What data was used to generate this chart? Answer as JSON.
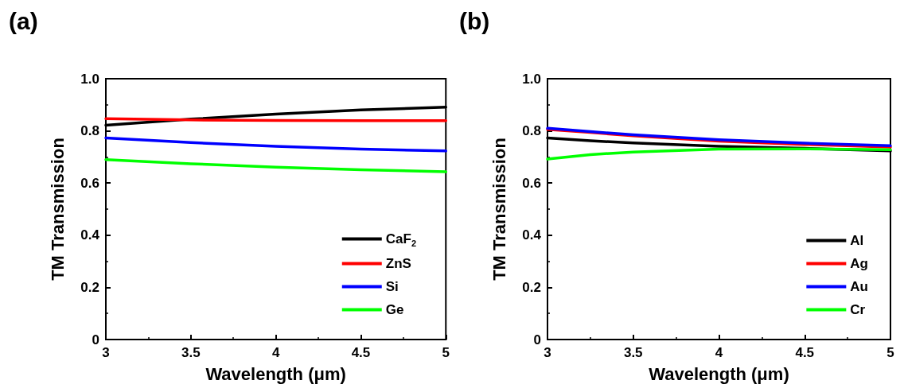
{
  "chart_data": [
    {
      "type": "line",
      "title": "(a)",
      "xlabel": "Wavelength (μm)",
      "ylabel": "TM Transmission",
      "x": [
        3,
        3.5,
        4,
        4.5,
        5
      ],
      "series": [
        {
          "name": "CaF$_{2}$",
          "color": "#000000",
          "values": [
            0.822,
            0.845,
            0.864,
            0.88,
            0.891
          ]
        },
        {
          "name": "ZnS",
          "color": "#ff0000",
          "values": [
            0.847,
            0.842,
            0.84,
            0.839,
            0.839
          ]
        },
        {
          "name": "Si",
          "color": "#0000ff",
          "values": [
            0.773,
            0.755,
            0.741,
            0.73,
            0.723
          ]
        },
        {
          "name": "Ge",
          "color": "#00ff00",
          "values": [
            0.69,
            0.674,
            0.661,
            0.651,
            0.643
          ]
        }
      ],
      "xlim": [
        3,
        5
      ],
      "xticks": [
        3,
        3.5,
        4,
        4.5,
        5
      ],
      "ylim": [
        0,
        1
      ],
      "yticks": [
        0,
        0.2,
        0.4,
        0.6,
        0.8,
        {
          "value": 1,
          "label": "1.0"
        }
      ],
      "grid": false,
      "legend": "bottom right",
      "marker": "none",
      "line_style": "solid"
    },
    {
      "type": "line",
      "title": "(b)",
      "xlabel": "Wavelength (μm)",
      "ylabel": "TM Transmission",
      "x": [
        3,
        3.25,
        3.5,
        4,
        4.5,
        5
      ],
      "series": [
        {
          "name": "Al",
          "color": "#000000",
          "values": [
            0.773,
            0.762,
            0.754,
            0.741,
            0.733,
            0.723
          ]
        },
        {
          "name": "Ag",
          "color": "#ff0000",
          "values": [
            0.806,
            0.794,
            0.781,
            0.761,
            0.748,
            0.738
          ]
        },
        {
          "name": "Au",
          "color": "#0000ff",
          "values": [
            0.81,
            0.797,
            0.785,
            0.766,
            0.753,
            0.743
          ]
        },
        {
          "name": "Cr",
          "color": "#00ff00",
          "values": [
            0.692,
            0.709,
            0.719,
            0.73,
            0.731,
            0.728
          ]
        }
      ],
      "xlim": [
        3,
        5
      ],
      "xticks": [
        3,
        3.5,
        4,
        4.5,
        5
      ],
      "ylim": [
        0,
        1
      ],
      "yticks": [
        0,
        0.2,
        0.4,
        0.6,
        0.8,
        {
          "value": 1,
          "label": "1.0"
        }
      ],
      "grid": false,
      "legend": "bottom right",
      "marker": "none",
      "line_style": "solid"
    }
  ]
}
